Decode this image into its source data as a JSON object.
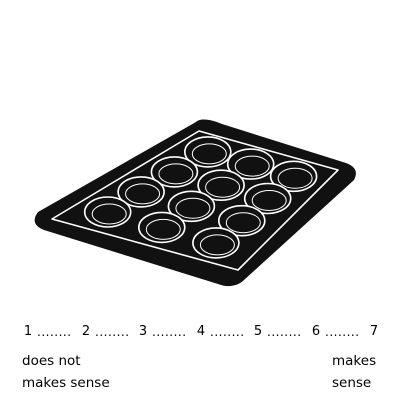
{
  "image": {
    "subject": "muffin-pan-icon",
    "colors": {
      "pan": "#111111",
      "highlight": "#ffffff",
      "background": "#ffffff"
    }
  },
  "scale": {
    "points": [
      "1",
      "2",
      "3",
      "4",
      "5",
      "6",
      "7"
    ],
    "separator": "........"
  },
  "anchors": {
    "low": [
      "does not",
      "makes sense"
    ],
    "high": [
      "makes",
      "sense"
    ]
  }
}
